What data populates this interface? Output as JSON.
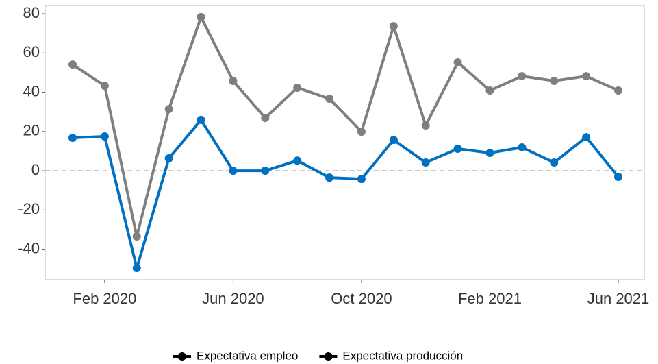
{
  "chart_data": {
    "type": "line",
    "categories": [
      null,
      "Feb 2020",
      null,
      null,
      null,
      "Jun 2020",
      null,
      null,
      null,
      "Oct 2020",
      null,
      null,
      null,
      "Feb 2021",
      null,
      null,
      null,
      "Jun 2021"
    ],
    "series": [
      {
        "name": "Expectativa empleo",
        "color": "#0070c0",
        "values": [
          16.8,
          17.5,
          -49.6,
          6.3,
          25.9,
          0,
          0,
          5.2,
          -3.5,
          -4.2,
          15.7,
          4.2,
          11.2,
          9.1,
          11.9,
          4.2,
          17.1,
          -3.1
        ]
      },
      {
        "name": "Expectativa producción",
        "color": "#7f7f7f",
        "values": [
          54.1,
          43.3,
          -33.5,
          31.4,
          78.3,
          45.8,
          26.9,
          42.3,
          36.7,
          19.9,
          73.7,
          23.1,
          55.2,
          40.9,
          48.2,
          45.8,
          48.2,
          40.9
        ]
      }
    ],
    "ylim": [
      -55.5,
      84.2
    ],
    "yticks": [
      -40,
      -20,
      0,
      20,
      40,
      60,
      80
    ],
    "reference_line": 0,
    "legend_position": "bottom",
    "legend_marker_color": "#000000"
  }
}
